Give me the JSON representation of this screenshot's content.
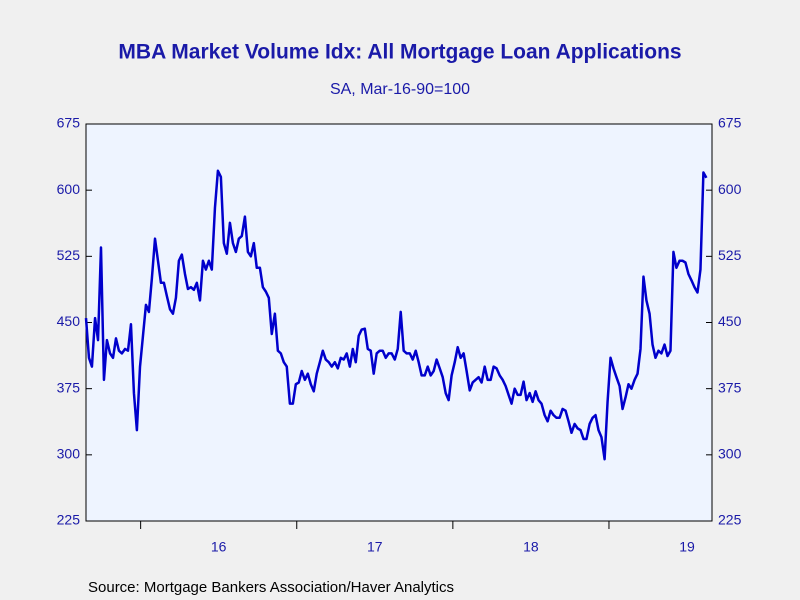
{
  "chart_data": {
    "type": "line",
    "title": "MBA Market Volume Idx: All Mortgage Loan Applications",
    "subtitle": "SA, Mar-16-90=100",
    "source": "Source:  Mortgage Bankers Association/Haver Analytics",
    "xlim": [
      2015.65,
      2019.66
    ],
    "xticks": [
      {
        "value": 2016,
        "label": "16"
      },
      {
        "value": 2017,
        "label": "17"
      },
      {
        "value": 2018,
        "label": "18"
      },
      {
        "value": 2019,
        "label": "19"
      }
    ],
    "ylim": [
      225,
      675
    ],
    "yticks": [
      225,
      300,
      375,
      450,
      525,
      600,
      675
    ],
    "y2lim": [
      225,
      675
    ],
    "y2ticks": [
      225,
      300,
      375,
      450,
      525,
      600,
      675
    ],
    "grid": false,
    "x": [
      2015.65,
      2015.669,
      2015.688,
      2015.708,
      2015.727,
      2015.746,
      2015.765,
      2015.784,
      2015.804,
      2015.823,
      2015.842,
      2015.861,
      2015.88,
      2015.9,
      2015.919,
      2015.938,
      2015.957,
      2015.976,
      2015.996,
      2016.015,
      2016.034,
      2016.053,
      2016.072,
      2016.092,
      2016.111,
      2016.13,
      2016.149,
      2016.168,
      2016.188,
      2016.207,
      2016.226,
      2016.245,
      2016.264,
      2016.284,
      2016.303,
      2016.322,
      2016.341,
      2016.36,
      2016.38,
      2016.399,
      2016.418,
      2016.437,
      2016.456,
      2016.476,
      2016.495,
      2016.514,
      2016.533,
      2016.552,
      2016.572,
      2016.591,
      2016.61,
      2016.629,
      2016.648,
      2016.668,
      2016.687,
      2016.706,
      2016.725,
      2016.744,
      2016.764,
      2016.783,
      2016.802,
      2016.821,
      2016.84,
      2016.86,
      2016.879,
      2016.898,
      2016.917,
      2016.936,
      2016.956,
      2016.975,
      2016.994,
      2017.013,
      2017.032,
      2017.052,
      2017.071,
      2017.09,
      2017.109,
      2017.128,
      2017.148,
      2017.167,
      2017.186,
      2017.205,
      2017.224,
      2017.244,
      2017.263,
      2017.282,
      2017.301,
      2017.32,
      2017.34,
      2017.359,
      2017.378,
      2017.397,
      2017.416,
      2017.436,
      2017.455,
      2017.474,
      2017.493,
      2017.512,
      2017.532,
      2017.551,
      2017.57,
      2017.589,
      2017.608,
      2017.628,
      2017.647,
      2017.666,
      2017.685,
      2017.704,
      2017.724,
      2017.743,
      2017.762,
      2017.781,
      2017.8,
      2017.82,
      2017.839,
      2017.858,
      2017.877,
      2017.896,
      2017.916,
      2017.935,
      2017.954,
      2017.973,
      2017.992,
      2018.012,
      2018.031,
      2018.05,
      2018.069,
      2018.088,
      2018.108,
      2018.127,
      2018.146,
      2018.165,
      2018.184,
      2018.204,
      2018.223,
      2018.242,
      2018.261,
      2018.28,
      2018.3,
      2018.319,
      2018.338,
      2018.357,
      2018.376,
      2018.396,
      2018.415,
      2018.434,
      2018.453,
      2018.472,
      2018.492,
      2018.511,
      2018.53,
      2018.549,
      2018.568,
      2018.588,
      2018.607,
      2018.626,
      2018.645,
      2018.664,
      2018.684,
      2018.703,
      2018.722,
      2018.741,
      2018.76,
      2018.78,
      2018.799,
      2018.818,
      2018.837,
      2018.856,
      2018.876,
      2018.895,
      2018.914,
      2018.933,
      2018.952,
      2018.972,
      2018.991,
      2019.01,
      2019.029,
      2019.048,
      2019.068,
      2019.087,
      2019.106,
      2019.125,
      2019.144,
      2019.164,
      2019.183,
      2019.202,
      2019.221,
      2019.24,
      2019.26,
      2019.279,
      2019.298,
      2019.317,
      2019.336,
      2019.356,
      2019.375,
      2019.394,
      2019.413,
      2019.432,
      2019.452,
      2019.471,
      2019.49,
      2019.509,
      2019.528,
      2019.548,
      2019.567,
      2019.586,
      2019.605,
      2019.624
    ],
    "series": [
      {
        "name": "MBA Market Volume Index",
        "color": "#0000cc",
        "values": [
          455,
          410,
          400,
          455,
          430,
          535,
          385,
          430,
          415,
          410,
          432,
          418,
          415,
          420,
          418,
          448,
          370,
          328,
          400,
          435,
          470,
          462,
          500,
          545,
          520,
          495,
          495,
          480,
          465,
          460,
          478,
          520,
          527,
          505,
          488,
          490,
          487,
          495,
          475,
          520,
          510,
          520,
          510,
          580,
          622,
          615,
          540,
          528,
          563,
          540,
          530,
          545,
          548,
          570,
          530,
          525,
          540,
          512,
          512,
          490,
          485,
          478,
          437,
          460,
          418,
          415,
          405,
          400,
          358,
          358,
          380,
          382,
          395,
          385,
          392,
          380,
          372,
          392,
          405,
          418,
          408,
          405,
          400,
          405,
          398,
          410,
          408,
          415,
          400,
          420,
          405,
          435,
          442,
          443,
          420,
          418,
          392,
          415,
          418,
          418,
          410,
          415,
          415,
          408,
          420,
          462,
          418,
          415,
          415,
          408,
          418,
          405,
          390,
          390,
          400,
          390,
          395,
          408,
          398,
          388,
          370,
          362,
          390,
          405,
          422,
          410,
          415,
          395,
          373,
          382,
          385,
          388,
          382,
          400,
          385,
          385,
          400,
          398,
          390,
          385,
          378,
          368,
          358,
          375,
          368,
          368,
          383,
          362,
          370,
          360,
          372,
          362,
          358,
          345,
          338,
          350,
          345,
          342,
          342,
          352,
          350,
          338,
          325,
          335,
          330,
          328,
          318,
          318,
          335,
          342,
          345,
          328,
          320,
          295,
          360,
          410,
          398,
          388,
          378,
          352,
          365,
          380,
          375,
          385,
          392,
          420,
          502,
          475,
          460,
          425,
          410,
          418,
          415,
          425,
          412,
          418,
          530,
          512,
          520,
          520,
          518,
          505,
          498,
          490,
          484,
          510,
          620,
          614
        ]
      }
    ]
  }
}
